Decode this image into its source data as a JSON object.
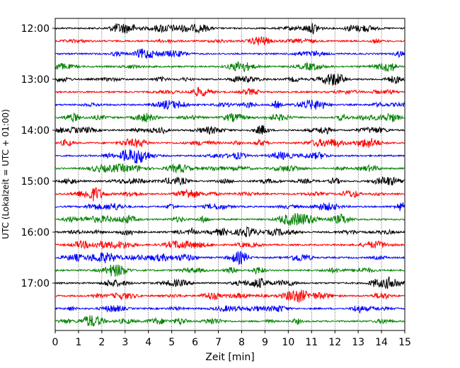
{
  "chart_data": {
    "type": "line",
    "title": "",
    "xlabel": "Zeit  [min]",
    "ylabel": "UTC (Lokalzeit = UTC + 01:00)",
    "xlim": [
      0,
      15
    ],
    "x_ticks": [
      "0",
      "1",
      "2",
      "3",
      "4",
      "5",
      "6",
      "7",
      "8",
      "9",
      "10",
      "11",
      "12",
      "13",
      "14",
      "15"
    ],
    "y_ticks": [
      "12:00",
      "13:00",
      "14:00",
      "15:00",
      "16:00",
      "17:00"
    ],
    "grid": {
      "x": true,
      "y": false,
      "style": "dotted"
    },
    "trace_colors": [
      "#000000",
      "#ff0000",
      "#0000ff",
      "#008000"
    ],
    "traces": [
      {
        "start": "12:00"
      },
      {
        "start": "12:15"
      },
      {
        "start": "12:30"
      },
      {
        "start": "12:45"
      },
      {
        "start": "13:00"
      },
      {
        "start": "13:15"
      },
      {
        "start": "13:30"
      },
      {
        "start": "13:45"
      },
      {
        "start": "14:00"
      },
      {
        "start": "14:15"
      },
      {
        "start": "14:30"
      },
      {
        "start": "14:45"
      },
      {
        "start": "15:00"
      },
      {
        "start": "15:15"
      },
      {
        "start": "15:30"
      },
      {
        "start": "15:45"
      },
      {
        "start": "16:00"
      },
      {
        "start": "16:15"
      },
      {
        "start": "16:30"
      },
      {
        "start": "16:45"
      },
      {
        "start": "17:00"
      },
      {
        "start": "17:15"
      },
      {
        "start": "17:30"
      },
      {
        "start": "17:45"
      }
    ]
  }
}
